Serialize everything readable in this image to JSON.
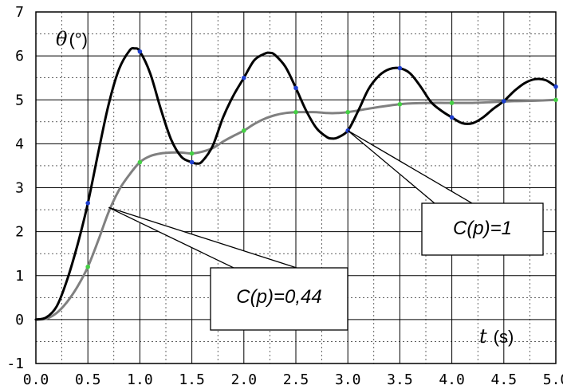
{
  "chart_data": {
    "type": "line",
    "title": "",
    "xlim": [
      0,
      5
    ],
    "ylim": [
      -1,
      7
    ],
    "x_ticks": [
      "0.0",
      "0.5",
      "1.0",
      "1.5",
      "2.0",
      "2.5",
      "3.0",
      "3.5",
      "4.0",
      "4.5",
      "5.0"
    ],
    "y_ticks": [
      "-1",
      "0",
      "1",
      "2",
      "3",
      "4",
      "5",
      "6",
      "7"
    ],
    "grid": true,
    "grid_minor": true,
    "xlabel_symbol": "t",
    "xlabel_unit": "(s)",
    "ylabel_symbol": "θ",
    "ylabel_unit": "(°)",
    "series": [
      {
        "color": "#000000",
        "marker_color": "#1f3fd0",
        "x": [
          0,
          0.1,
          0.2,
          0.3,
          0.4,
          0.5,
          0.6,
          0.7,
          0.8,
          0.9,
          0.95,
          1.0,
          1.1,
          1.2,
          1.3,
          1.4,
          1.5,
          1.55,
          1.6,
          1.7,
          1.8,
          1.9,
          2.0,
          2.1,
          2.2,
          2.25,
          2.3,
          2.4,
          2.5,
          2.6,
          2.7,
          2.8,
          2.85,
          2.9,
          3.0,
          3.1,
          3.2,
          3.3,
          3.4,
          3.5,
          3.6,
          3.7,
          3.8,
          3.9,
          4.0,
          4.1,
          4.2,
          4.3,
          4.4,
          4.5,
          4.6,
          4.7,
          4.8,
          4.9,
          5.0
        ],
        "y": [
          0,
          0.05,
          0.3,
          0.9,
          1.7,
          2.65,
          3.8,
          4.9,
          5.7,
          6.12,
          6.17,
          6.1,
          5.6,
          4.8,
          4.1,
          3.7,
          3.58,
          3.55,
          3.6,
          3.95,
          4.6,
          5.1,
          5.5,
          5.9,
          6.05,
          6.07,
          6.02,
          5.75,
          5.27,
          4.75,
          4.35,
          4.15,
          4.12,
          4.14,
          4.3,
          4.75,
          5.25,
          5.55,
          5.7,
          5.72,
          5.6,
          5.3,
          4.95,
          4.75,
          4.6,
          4.47,
          4.47,
          4.6,
          4.8,
          4.97,
          5.2,
          5.38,
          5.47,
          5.45,
          5.3
        ],
        "markers_x": [
          0.5,
          1.0,
          1.5,
          2.0,
          2.5,
          3.0,
          3.5,
          4.0,
          4.5,
          5.0
        ],
        "markers_y": [
          2.65,
          6.1,
          3.58,
          5.5,
          5.27,
          4.3,
          5.72,
          4.6,
          4.97,
          5.3
        ]
      },
      {
        "color": "#808080",
        "marker_color": "#44d044",
        "x": [
          0,
          0.1,
          0.2,
          0.3,
          0.4,
          0.5,
          0.6,
          0.7,
          0.8,
          0.9,
          1.0,
          1.1,
          1.2,
          1.3,
          1.4,
          1.5,
          1.6,
          1.7,
          1.8,
          1.9,
          2.0,
          2.1,
          2.2,
          2.3,
          2.4,
          2.5,
          2.6,
          2.7,
          2.8,
          2.9,
          3.0,
          3.2,
          3.4,
          3.5,
          3.6,
          3.8,
          4.0,
          4.2,
          4.4,
          4.6,
          4.8,
          5.0
        ],
        "y": [
          0,
          0.02,
          0.15,
          0.4,
          0.75,
          1.2,
          1.8,
          2.45,
          2.95,
          3.3,
          3.58,
          3.72,
          3.78,
          3.8,
          3.8,
          3.78,
          3.82,
          3.9,
          4.05,
          4.18,
          4.3,
          4.45,
          4.57,
          4.65,
          4.7,
          4.72,
          4.72,
          4.72,
          4.7,
          4.7,
          4.72,
          4.8,
          4.87,
          4.9,
          4.92,
          4.93,
          4.93,
          4.93,
          4.95,
          4.97,
          4.98,
          5.0
        ],
        "markers_x": [
          0.5,
          1.0,
          1.5,
          2.0,
          2.5,
          3.0,
          3.5,
          4.0,
          4.5,
          5.0
        ],
        "markers_y": [
          1.2,
          3.58,
          3.78,
          4.3,
          4.72,
          4.72,
          4.9,
          4.93,
          4.97,
          5.0
        ]
      }
    ],
    "annotations": [
      {
        "text": "C(p)=1",
        "pointer": [
          3.0,
          4.3
        ]
      },
      {
        "text": "C(p)=0,44",
        "pointer": [
          0.7,
          2.55
        ]
      }
    ]
  }
}
